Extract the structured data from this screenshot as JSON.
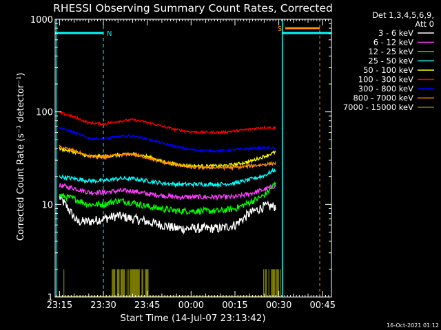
{
  "chart_data": {
    "type": "line",
    "title": "RHESSI Observing Summary Count Rates, Corrected",
    "xlabel": "Start Time (14-Jul-07 23:13:42)",
    "ylabel": "Corrected Count Rate (s⁻¹ detector⁻¹)",
    "y_scale": "log",
    "ylim": [
      1,
      1000
    ],
    "x_range_minutes": [
      -1.5,
      93
    ],
    "x_ticks": [
      {
        "label": "23:15",
        "min": 0
      },
      {
        "label": "23:30",
        "min": 15
      },
      {
        "label": "23:45",
        "min": 30
      },
      {
        "label": "00:00",
        "min": 45
      },
      {
        "label": "00:15",
        "min": 60
      },
      {
        "label": "00:30",
        "min": 75
      },
      {
        "label": "00:45",
        "min": 90
      }
    ],
    "y_ticks": [
      {
        "label": "1",
        "value": 1
      },
      {
        "label": "10",
        "value": 10
      },
      {
        "label": "100",
        "value": 100
      },
      {
        "label": "1000",
        "value": 1000
      }
    ],
    "legend_header": [
      "Det 1,3,4,5,6,9,",
      "Att 0"
    ],
    "legend_position": "right",
    "series": [
      {
        "name": "3 - 6 keV",
        "color": "#ffffff",
        "noise": 0.12,
        "points": [
          [
            0,
            12
          ],
          [
            3,
            9
          ],
          [
            6,
            6.5
          ],
          [
            10,
            6.5
          ],
          [
            15,
            7
          ],
          [
            20,
            7.5
          ],
          [
            25,
            7
          ],
          [
            30,
            6.5
          ],
          [
            35,
            6
          ],
          [
            40,
            5.5
          ],
          [
            45,
            5.5
          ],
          [
            50,
            5.5
          ],
          [
            55,
            5.5
          ],
          [
            60,
            6
          ],
          [
            65,
            8
          ],
          [
            70,
            9.5
          ],
          [
            74,
            9.5
          ]
        ]
      },
      {
        "name": "6 - 12 keV",
        "color": "#ff40ff",
        "noise": 0.06,
        "points": [
          [
            0,
            16
          ],
          [
            5,
            15
          ],
          [
            10,
            13.5
          ],
          [
            15,
            13.5
          ],
          [
            20,
            14
          ],
          [
            25,
            14
          ],
          [
            30,
            13
          ],
          [
            35,
            12.5
          ],
          [
            40,
            12
          ],
          [
            45,
            12
          ],
          [
            50,
            12
          ],
          [
            55,
            12
          ],
          [
            60,
            12
          ],
          [
            65,
            13
          ],
          [
            70,
            14.5
          ],
          [
            74,
            16
          ]
        ]
      },
      {
        "name": "12 - 25 keV",
        "color": "#00ff00",
        "noise": 0.08,
        "points": [
          [
            0,
            12.5
          ],
          [
            5,
            11.5
          ],
          [
            10,
            10
          ],
          [
            15,
            10
          ],
          [
            20,
            11
          ],
          [
            25,
            10.5
          ],
          [
            30,
            9.5
          ],
          [
            35,
            9
          ],
          [
            40,
            8.5
          ],
          [
            45,
            8.5
          ],
          [
            50,
            8.5
          ],
          [
            55,
            8.5
          ],
          [
            60,
            9
          ],
          [
            65,
            10.5
          ],
          [
            70,
            12.5
          ],
          [
            74,
            17
          ]
        ]
      },
      {
        "name": "25 - 50 keV",
        "color": "#00ffff",
        "noise": 0.05,
        "points": [
          [
            0,
            20
          ],
          [
            5,
            19
          ],
          [
            10,
            18
          ],
          [
            15,
            18
          ],
          [
            20,
            19
          ],
          [
            25,
            19
          ],
          [
            30,
            18
          ],
          [
            35,
            17
          ],
          [
            40,
            16.5
          ],
          [
            45,
            16.5
          ],
          [
            50,
            16.5
          ],
          [
            55,
            16.5
          ],
          [
            60,
            17
          ],
          [
            65,
            18.5
          ],
          [
            70,
            20.5
          ],
          [
            73,
            23
          ],
          [
            74,
            24
          ]
        ]
      },
      {
        "name": "50 - 100 keV",
        "color": "#ffff00",
        "noise": 0.04,
        "points": [
          [
            0,
            40
          ],
          [
            5,
            37
          ],
          [
            10,
            33
          ],
          [
            15,
            33
          ],
          [
            20,
            34
          ],
          [
            25,
            35
          ],
          [
            30,
            33
          ],
          [
            35,
            29
          ],
          [
            40,
            27
          ],
          [
            45,
            26
          ],
          [
            50,
            26
          ],
          [
            55,
            26
          ],
          [
            60,
            27
          ],
          [
            65,
            29
          ],
          [
            70,
            33
          ],
          [
            74,
            37
          ]
        ]
      },
      {
        "name": "100 - 300 keV",
        "color": "#ff0000",
        "noise": 0.03,
        "points": [
          [
            0,
            98
          ],
          [
            5,
            88
          ],
          [
            10,
            76
          ],
          [
            15,
            74
          ],
          [
            20,
            79
          ],
          [
            25,
            82
          ],
          [
            30,
            77
          ],
          [
            35,
            70
          ],
          [
            40,
            64
          ],
          [
            45,
            61
          ],
          [
            50,
            60
          ],
          [
            55,
            60
          ],
          [
            60,
            62
          ],
          [
            65,
            65
          ],
          [
            70,
            68
          ],
          [
            74,
            67
          ]
        ]
      },
      {
        "name": "300 - 800 keV",
        "color": "#0000ff",
        "noise": 0.03,
        "points": [
          [
            0,
            68
          ],
          [
            5,
            60
          ],
          [
            10,
            52
          ],
          [
            15,
            51
          ],
          [
            20,
            54
          ],
          [
            25,
            55
          ],
          [
            30,
            51
          ],
          [
            35,
            46
          ],
          [
            40,
            42
          ],
          [
            45,
            39
          ],
          [
            50,
            38
          ],
          [
            55,
            38
          ],
          [
            60,
            39
          ],
          [
            65,
            40
          ],
          [
            70,
            41
          ],
          [
            74,
            40
          ]
        ]
      },
      {
        "name": "800 - 7000 keV",
        "color": "#ff8c00",
        "noise": 0.04,
        "points": [
          [
            0,
            42
          ],
          [
            5,
            38
          ],
          [
            10,
            33
          ],
          [
            15,
            32
          ],
          [
            20,
            34
          ],
          [
            25,
            35
          ],
          [
            30,
            32
          ],
          [
            35,
            29
          ],
          [
            40,
            27
          ],
          [
            45,
            25
          ],
          [
            50,
            25
          ],
          [
            55,
            25
          ],
          [
            60,
            25
          ],
          [
            65,
            26
          ],
          [
            70,
            27
          ],
          [
            74,
            28
          ]
        ]
      },
      {
        "name": "7000 - 15000 keV",
        "color": "#808000",
        "noise": 0,
        "points": []
      }
    ],
    "annotations": [
      {
        "text": "N",
        "min": 15
      },
      {
        "text": "S",
        "min": 76.2
      }
    ]
  },
  "footer": {
    "timestamp": "16-Oct-2021 01:12"
  }
}
